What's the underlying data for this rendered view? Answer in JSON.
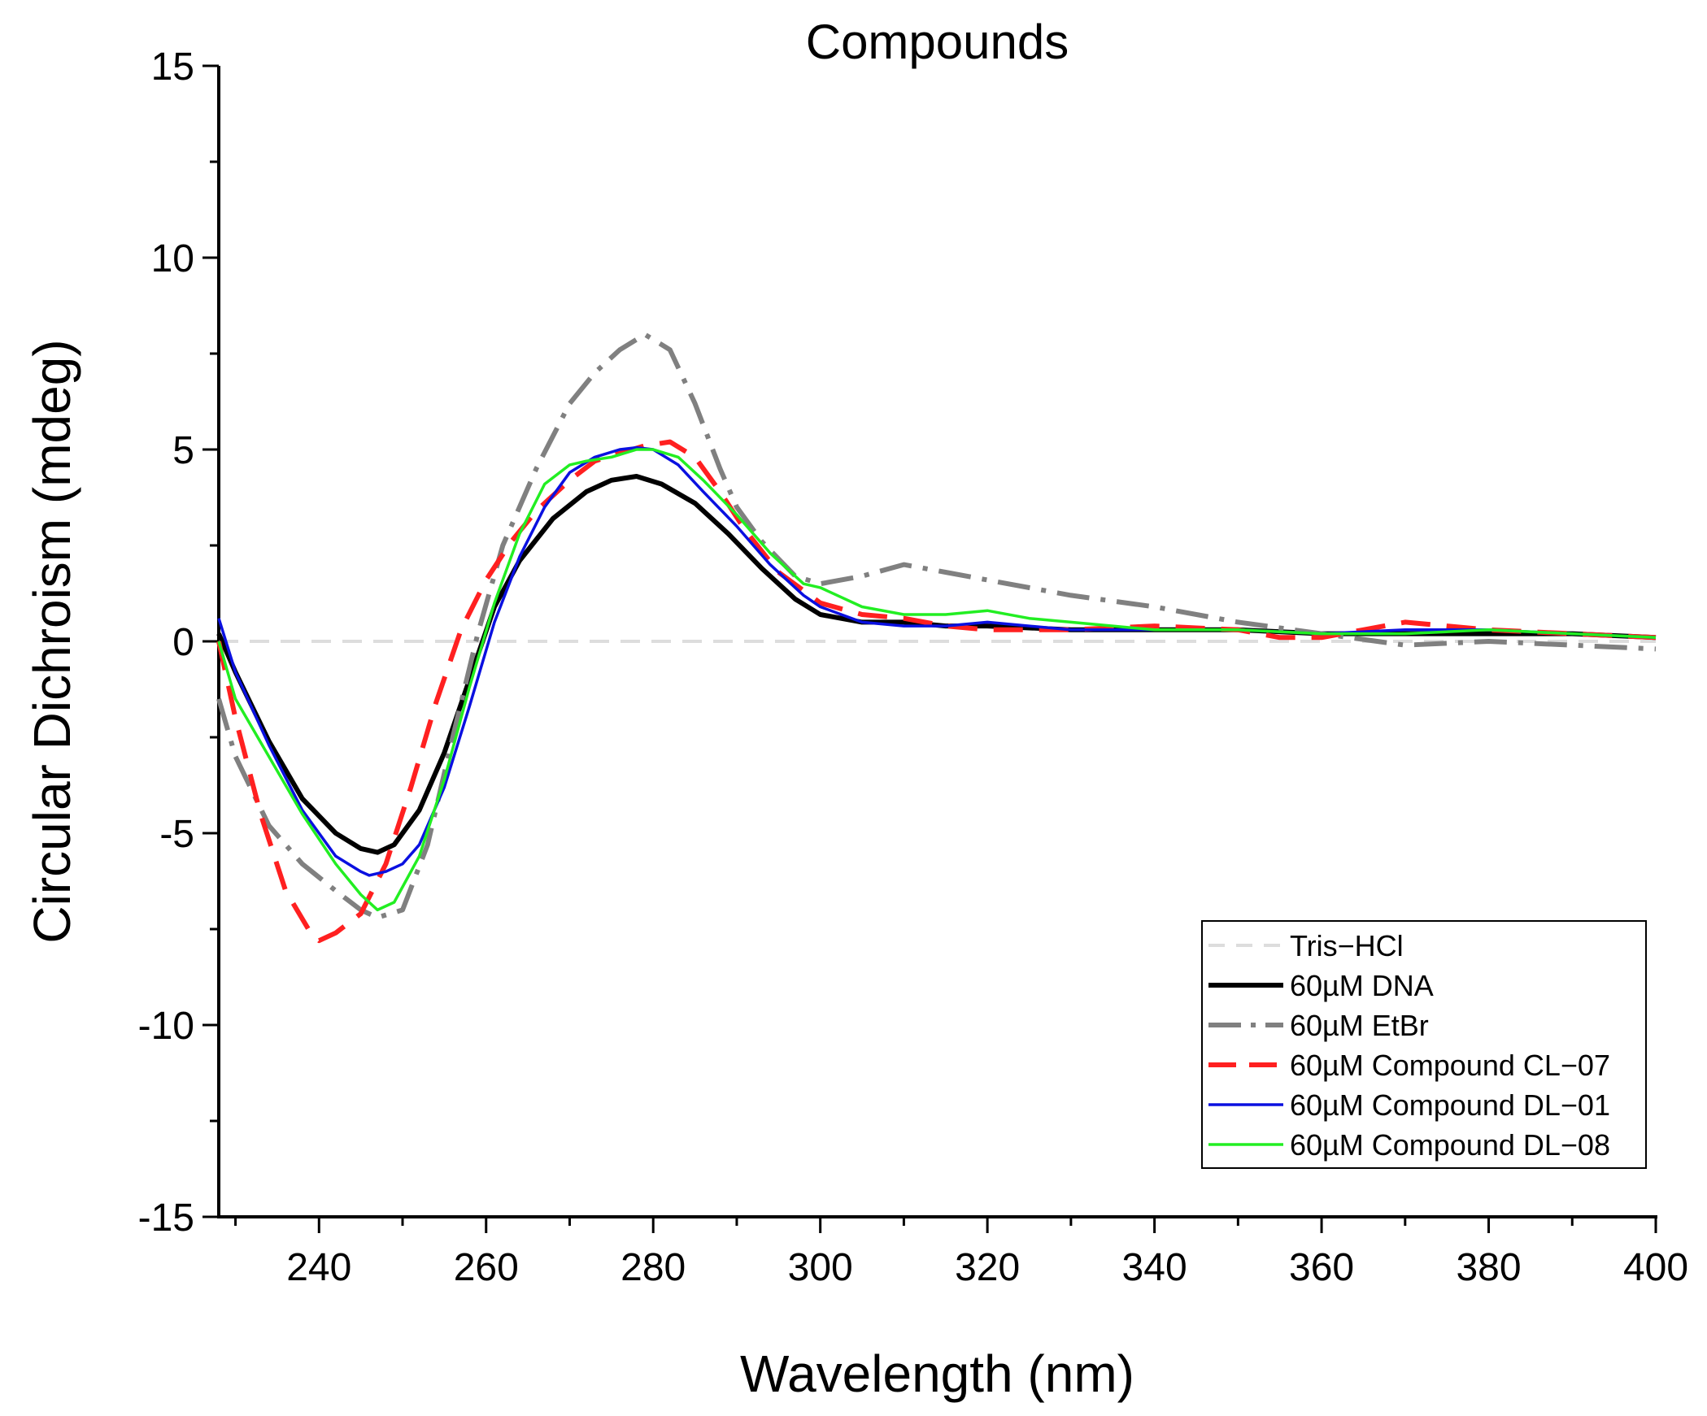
{
  "chart_data": {
    "type": "line",
    "title": "Compounds",
    "xlabel": "Wavelength (nm)",
    "ylabel": "Circular Dichroism (mdeg)",
    "xlim": [
      228,
      400
    ],
    "ylim": [
      -15,
      15
    ],
    "xticks": [
      240,
      260,
      280,
      300,
      320,
      340,
      360,
      380,
      400
    ],
    "yticks": [
      -15,
      -10,
      -5,
      0,
      5,
      10,
      15
    ],
    "grid": false,
    "legend_position": "bottom-right",
    "series": [
      {
        "name": "Tris−HCl",
        "color": "#dddddd",
        "dash": "dash",
        "x": [
          228,
          400
        ],
        "y": [
          0,
          0
        ]
      },
      {
        "name": "60µM DNA",
        "color": "#000000",
        "dash": "solid",
        "x": [
          228,
          230,
          234,
          238,
          242,
          245,
          247,
          249,
          252,
          255,
          258,
          261,
          264,
          268,
          272,
          275,
          278,
          281,
          285,
          289,
          293,
          297,
          300,
          305,
          310,
          315,
          320,
          330,
          340,
          350,
          360,
          370,
          380,
          390,
          400
        ],
        "y": [
          0.2,
          -0.8,
          -2.6,
          -4.1,
          -5.0,
          -5.4,
          -5.5,
          -5.3,
          -4.4,
          -2.9,
          -1.0,
          0.9,
          2.1,
          3.2,
          3.9,
          4.2,
          4.3,
          4.1,
          3.6,
          2.8,
          1.9,
          1.1,
          0.7,
          0.5,
          0.5,
          0.4,
          0.4,
          0.3,
          0.3,
          0.3,
          0.2,
          0.2,
          0.2,
          0.2,
          0.1
        ]
      },
      {
        "name": "60µM EtBr",
        "color": "#808080",
        "dash": "dashdot",
        "x": [
          228,
          230,
          234,
          238,
          242,
          245,
          247,
          250,
          253,
          256,
          259,
          262,
          266,
          270,
          273,
          276,
          279,
          282,
          285,
          288,
          290,
          293,
          297,
          300,
          305,
          310,
          315,
          320,
          330,
          340,
          350,
          360,
          370,
          380,
          390,
          400
        ],
        "y": [
          -1.5,
          -3.0,
          -4.8,
          -5.8,
          -6.5,
          -7.0,
          -7.2,
          -7.0,
          -5.3,
          -2.5,
          0.2,
          2.5,
          4.5,
          6.2,
          7.0,
          7.6,
          8.0,
          7.6,
          6.2,
          4.5,
          3.5,
          2.6,
          1.7,
          1.5,
          1.7,
          2.0,
          1.8,
          1.6,
          1.2,
          0.9,
          0.5,
          0.2,
          -0.1,
          0.0,
          -0.1,
          -0.2
        ]
      },
      {
        "name": "60µM Compound CL−07",
        "color": "#ff2020",
        "dash": "longdash",
        "x": [
          228,
          230,
          233,
          236,
          239,
          240,
          242,
          245,
          248,
          251,
          254,
          257,
          260,
          263,
          266,
          270,
          273,
          276,
          279,
          282,
          285,
          288,
          291,
          295,
          300,
          305,
          310,
          315,
          320,
          330,
          340,
          350,
          355,
          360,
          365,
          370,
          375,
          380,
          390,
          400
        ],
        "y": [
          0.0,
          -2.0,
          -4.5,
          -6.5,
          -7.6,
          -7.8,
          -7.6,
          -7.1,
          -5.8,
          -3.8,
          -1.6,
          0.3,
          1.6,
          2.6,
          3.4,
          4.2,
          4.7,
          4.9,
          5.1,
          5.2,
          4.8,
          3.9,
          2.9,
          1.8,
          1.0,
          0.7,
          0.6,
          0.4,
          0.3,
          0.3,
          0.4,
          0.3,
          0.1,
          0.1,
          0.3,
          0.5,
          0.4,
          0.3,
          0.2,
          0.1
        ]
      },
      {
        "name": "60µM Compound DL−01",
        "color": "#0a10e0",
        "dash": "solid",
        "x": [
          228,
          230,
          234,
          238,
          242,
          245,
          246,
          248,
          250,
          252,
          255,
          258,
          261,
          264,
          267,
          270,
          273,
          276,
          278,
          280,
          283,
          286,
          290,
          294,
          298,
          300,
          305,
          310,
          315,
          320,
          330,
          340,
          350,
          360,
          370,
          380,
          390,
          400
        ],
        "y": [
          0.6,
          -0.8,
          -2.7,
          -4.4,
          -5.6,
          -6.0,
          -6.1,
          -6.0,
          -5.8,
          -5.3,
          -3.8,
          -1.7,
          0.5,
          2.2,
          3.5,
          4.4,
          4.8,
          5.0,
          5.05,
          5.0,
          4.6,
          3.9,
          3.0,
          2.0,
          1.2,
          0.9,
          0.5,
          0.4,
          0.4,
          0.5,
          0.3,
          0.3,
          0.3,
          0.2,
          0.3,
          0.3,
          0.2,
          0.1
        ]
      },
      {
        "name": "60µM Compound DL−08",
        "color": "#22ee22",
        "dash": "solid",
        "x": [
          228,
          230,
          234,
          238,
          242,
          245,
          247,
          249,
          252,
          255,
          258,
          261,
          264,
          267,
          270,
          272,
          275,
          278,
          280,
          283,
          286,
          290,
          294,
          298,
          300,
          305,
          310,
          315,
          320,
          325,
          330,
          340,
          350,
          360,
          370,
          380,
          390,
          400
        ],
        "y": [
          0.0,
          -1.5,
          -3.0,
          -4.5,
          -5.8,
          -6.6,
          -7.0,
          -6.8,
          -5.6,
          -3.6,
          -1.2,
          1.0,
          2.8,
          4.1,
          4.6,
          4.7,
          4.8,
          5.0,
          5.0,
          4.8,
          4.2,
          3.3,
          2.3,
          1.5,
          1.4,
          0.9,
          0.7,
          0.7,
          0.8,
          0.6,
          0.5,
          0.3,
          0.3,
          0.2,
          0.2,
          0.3,
          0.2,
          0.1
        ]
      }
    ]
  }
}
